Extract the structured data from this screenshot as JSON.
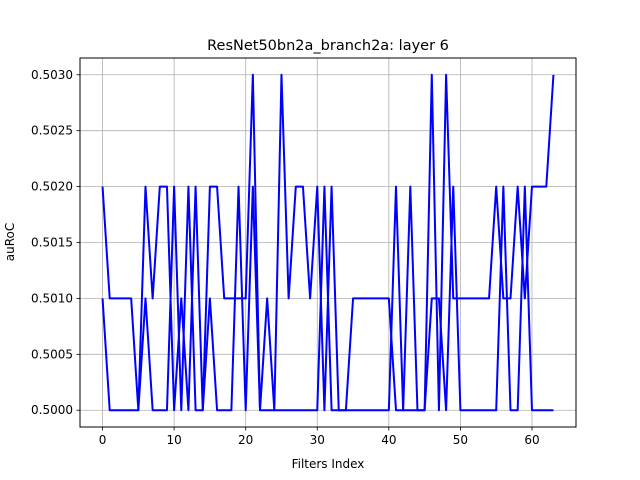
{
  "chart_data": {
    "type": "line",
    "title": "ResNet50bn2a_branch2a: layer 6",
    "xlabel": "Filters Index",
    "ylabel": "auRoC",
    "xlim": [
      -3.15,
      66.15
    ],
    "ylim": [
      0.49985,
      0.50315
    ],
    "xticks": [
      0,
      10,
      20,
      30,
      40,
      50,
      60
    ],
    "xtick_labels": [
      "0",
      "10",
      "20",
      "30",
      "40",
      "50",
      "60"
    ],
    "yticks": [
      0.5,
      0.5005,
      0.501,
      0.5015,
      0.502,
      0.5025,
      0.503
    ],
    "ytick_labels": [
      "0.5000",
      "0.5005",
      "0.5010",
      "0.5015",
      "0.5020",
      "0.5025",
      "0.5030"
    ],
    "grid": true,
    "line_color": "#0000ff",
    "series": [
      {
        "x": [
          0,
          1,
          2,
          3,
          4,
          5,
          6,
          7,
          8,
          9,
          10,
          11,
          12,
          13,
          14,
          15,
          16,
          17,
          18,
          19,
          20,
          21,
          22,
          23,
          24,
          25,
          26,
          27,
          28,
          29,
          30,
          31,
          32,
          33,
          34,
          35,
          36,
          37,
          38,
          39,
          40,
          41,
          42,
          43,
          44,
          45,
          46,
          47,
          48,
          49,
          50,
          51,
          52,
          53,
          54,
          55,
          56,
          57,
          58,
          59,
          60,
          61,
          62,
          63
        ],
        "values": [
          0.502,
          0.501,
          0.501,
          0.501,
          0.501,
          0.5,
          0.502,
          0.501,
          0.502,
          0.502,
          0.5,
          0.501,
          0.5,
          0.502,
          0.5,
          0.502,
          0.502,
          0.501,
          0.501,
          0.501,
          0.501,
          0.503,
          0.5,
          0.501,
          0.5,
          0.503,
          0.501,
          0.502,
          0.502,
          0.501,
          0.502,
          0.5,
          0.502,
          0.5,
          0.5,
          0.501,
          0.501,
          0.501,
          0.501,
          0.501,
          0.501,
          0.5,
          0.5,
          0.502,
          0.5,
          0.5,
          0.503,
          0.5,
          0.503,
          0.501,
          0.501,
          0.501,
          0.501,
          0.501,
          0.501,
          0.502,
          0.501,
          0.501,
          0.502,
          0.501,
          0.502,
          0.502,
          0.502,
          0.503
        ]
      },
      {
        "x": [
          0,
          1,
          2,
          3,
          4,
          5,
          6,
          7,
          8,
          9,
          10,
          11,
          12,
          13,
          14,
          15,
          16,
          17,
          18,
          19,
          20,
          21,
          22,
          23,
          24,
          25,
          26,
          27,
          28,
          29,
          30,
          31,
          32,
          33,
          34,
          35,
          36,
          37,
          38,
          39,
          40,
          41,
          42,
          43,
          44,
          45,
          46,
          47,
          48,
          49,
          50,
          51,
          52,
          53,
          54,
          55,
          56,
          57,
          58,
          59,
          60,
          61,
          62,
          63
        ],
        "values": [
          0.501,
          0.5,
          0.5,
          0.5,
          0.5,
          0.5,
          0.501,
          0.5,
          0.5,
          0.5,
          0.502,
          0.5,
          0.502,
          0.5,
          0.5,
          0.501,
          0.5,
          0.5,
          0.5,
          0.502,
          0.5,
          0.502,
          0.5,
          0.5,
          0.5,
          0.5,
          0.5,
          0.5,
          0.5,
          0.5,
          0.5,
          0.502,
          0.5,
          0.5,
          0.5,
          0.5,
          0.5,
          0.5,
          0.5,
          0.5,
          0.5,
          0.502,
          0.5,
          0.5,
          0.5,
          0.5,
          0.501,
          0.501,
          0.5,
          0.502,
          0.5,
          0.5,
          0.5,
          0.5,
          0.5,
          0.5,
          0.502,
          0.5,
          0.5,
          0.502,
          0.5,
          0.5,
          0.5,
          0.5
        ]
      }
    ]
  }
}
